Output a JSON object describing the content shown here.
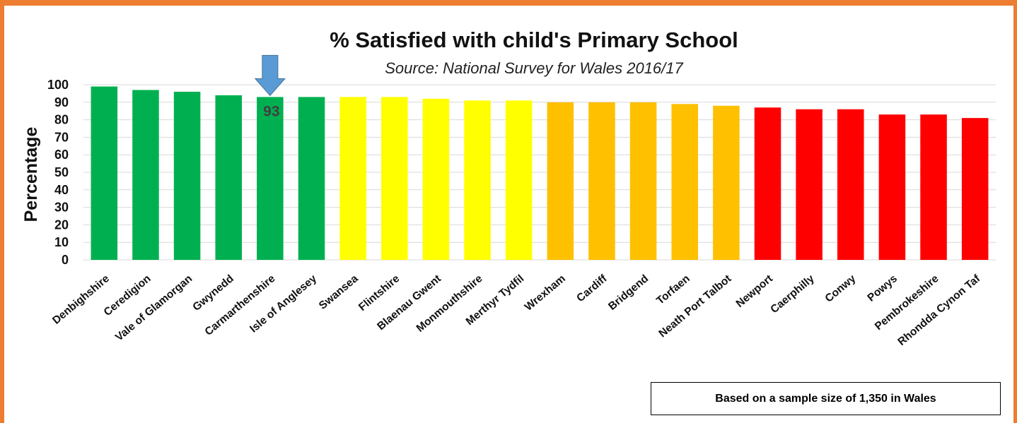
{
  "chart_data": {
    "type": "bar",
    "title": "% Satisfied with child's Primary School",
    "subtitle": "Source: National Survey for Wales 2016/17",
    "ylabel": "Percentage",
    "xlabel": "",
    "ylim": [
      0,
      100
    ],
    "yticks": [
      0,
      10,
      20,
      30,
      40,
      50,
      60,
      70,
      80,
      90,
      100
    ],
    "grid": true,
    "categories": [
      "Denbighshire",
      "Ceredigion",
      "Vale of Glamorgan",
      "Gwynedd",
      "Carmarthenshire",
      "Isle of Anglesey",
      "Swansea",
      "Flintshire",
      "Blaenau Gwent",
      "Monmouthshire",
      "Merthyr Tydfil",
      "Wrexham",
      "Cardiff",
      "Bridgend",
      "Torfaen",
      "Neath Port Talbot",
      "Newport",
      "Caerphilly",
      "Conwy",
      "Powys",
      "Pembrokeshire",
      "Rhondda Cynon Taf"
    ],
    "values": [
      99,
      97,
      96,
      94,
      93,
      93,
      93,
      93,
      92,
      91,
      91,
      90,
      90,
      90,
      89,
      88,
      87,
      86,
      86,
      83,
      83,
      81
    ],
    "bar_colors": [
      "#00B050",
      "#00B050",
      "#00B050",
      "#00B050",
      "#00B050",
      "#00B050",
      "#FFFF00",
      "#FFFF00",
      "#FFFF00",
      "#FFFF00",
      "#FFFF00",
      "#FFC000",
      "#FFC000",
      "#FFC000",
      "#FFC000",
      "#FFC000",
      "#FF0000",
      "#FF0000",
      "#FF0000",
      "#FF0000",
      "#FF0000",
      "#FF0000"
    ],
    "annotations": [
      {
        "type": "arrow",
        "category": "Carmarthenshire",
        "label": "93",
        "color": "#5B9BD5"
      }
    ]
  },
  "note": "Based on a sample size of 1,350 in Wales",
  "colors": {
    "frame": "#ED7D31",
    "grid": "#D9D9D9"
  }
}
